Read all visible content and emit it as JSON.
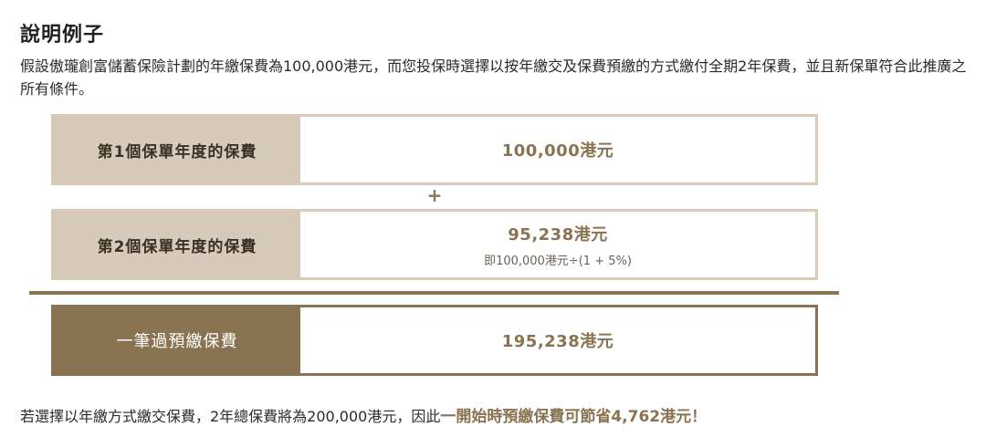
{
  "title": "說明例子",
  "description": "假設傲瓏創富儲蓄保險計劃的年繳保費為100,000港元，而您投保時選擇以按年繳交及保費預繳的方式繳付全期2年保費，並且新保單符合此推廣之所有條件。",
  "rows": [
    {
      "label": "第1個保單年度的保費",
      "amount": "100,000港元",
      "note": ""
    },
    {
      "label": "第2個保單年度的保費",
      "amount": "95,238港元",
      "note": "即100,000港元÷(1 + 5%)"
    }
  ],
  "plus_sign": "+",
  "total": {
    "label": "一筆過預繳保費",
    "amount": "195,238港元"
  },
  "footer": {
    "text": "若選擇以年繳方式繳交保費，2年總保費將為200,000港元，因此",
    "highlight": "一開始時預繳保費可節省4,762港元！"
  },
  "colors": {
    "accent": "#8a7352",
    "light": "#d6cbb8"
  }
}
